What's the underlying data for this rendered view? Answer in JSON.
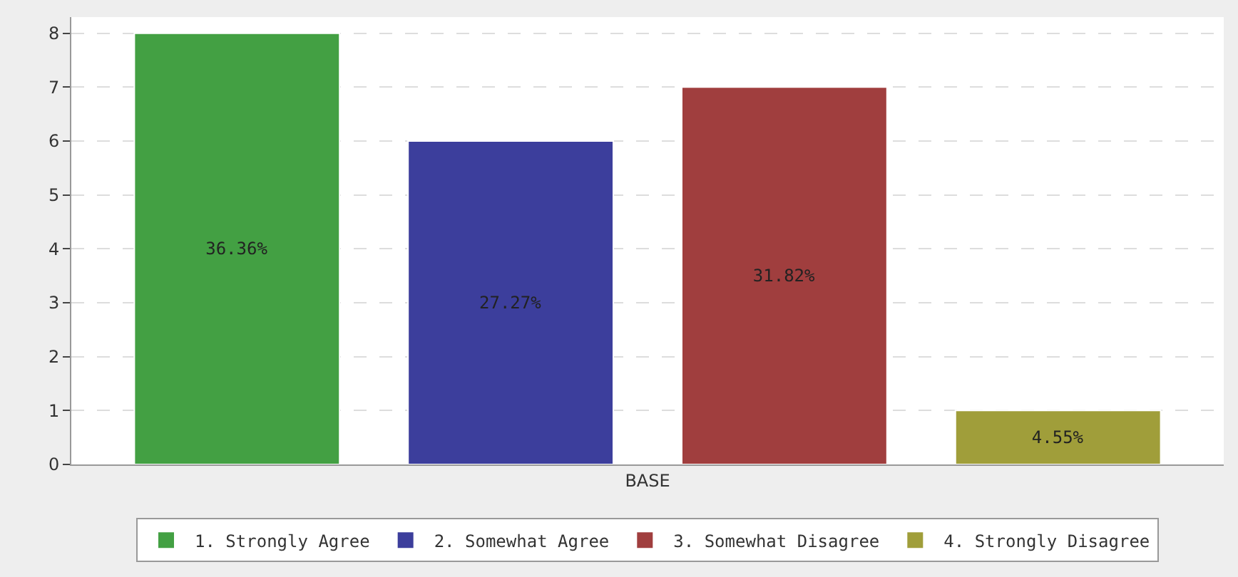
{
  "chart_data": {
    "type": "bar",
    "categories": [
      "BASE"
    ],
    "series": [
      {
        "name": "1. Strongly Agree",
        "color": "#43a043",
        "values": [
          8
        ]
      },
      {
        "name": "2. Somewhat Agree",
        "color": "#3c3e9c",
        "values": [
          6
        ]
      },
      {
        "name": "3. Somewhat Disagree",
        "color": "#a03e3e",
        "values": [
          7
        ]
      },
      {
        "name": "4. Strongly Disagree",
        "color": "#a09e3a",
        "values": [
          1
        ]
      }
    ],
    "annotations": [
      "36.36%",
      "27.27%",
      "31.82%",
      "4.55%"
    ],
    "ylim": [
      0,
      8.3
    ],
    "yticks": [
      0,
      1,
      2,
      3,
      4,
      5,
      6,
      7,
      8
    ],
    "grid": "y",
    "legend": "bottom"
  }
}
